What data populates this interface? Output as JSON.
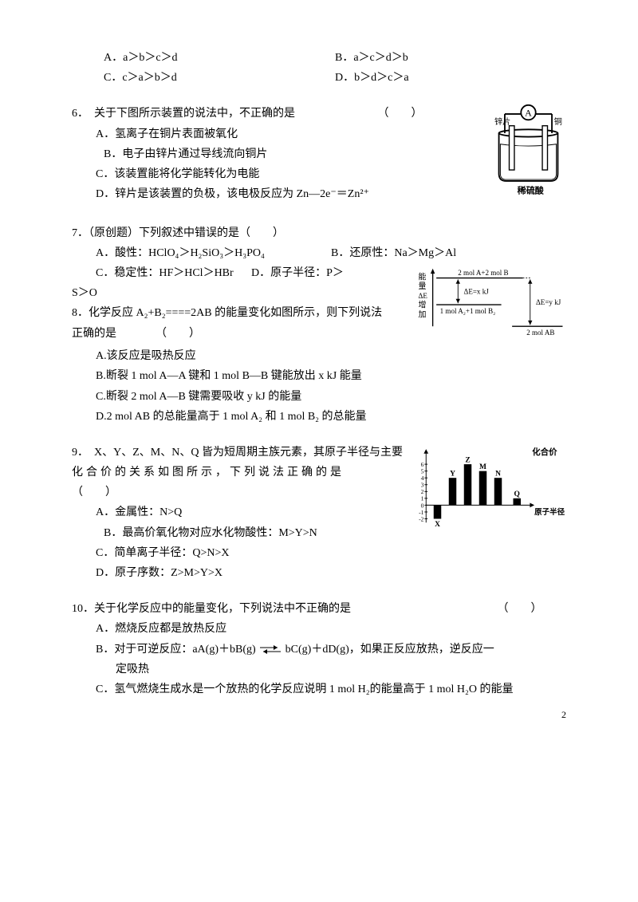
{
  "answers5": {
    "a": "A．a＞b＞c＞d",
    "b": "B．a＞c＞d＞b",
    "c": "C．c＞a＞b＞d",
    "d": "D．b＞d＞c＞a"
  },
  "q6": {
    "stem": "6．　关于下图所示装置的说法中，不正确的是",
    "paren": "（　　）",
    "a": "A．氢离子在铜片表面被氧化",
    "b": "B．电子由锌片通过导线流向铜片",
    "c": "C．该装置能将化学能转化为电能",
    "d": "D．锌片是该装置的负极，该电极反应为 Zn—2e⁻＝Zn²⁺",
    "diagram": {
      "ammeter": "A",
      "left_label": "锌片",
      "right_label": "铜",
      "bottom_label": "稀硫酸",
      "colors": {
        "stroke": "#000000",
        "fill_white": "#ffffff"
      }
    }
  },
  "q7": {
    "stem": "7．（原创题）下列叙述中错误的是（　　）",
    "a": "A．酸性：HClO₄＞H₂SiO₃＞H₃PO₄",
    "b": "B．还原性：Na＞Mg＞Al",
    "c": "C．稳定性：HF＞HCl＞HBr",
    "d": "D．原子半径：P＞",
    "cont": "S＞O"
  },
  "q8": {
    "stem": "8．化学反应 A₂+B₂====2AB 的能量变化如图所示，则下列说法",
    "stem2": "正确的是　　　　（　　）",
    "a": "A.该反应是吸热反应",
    "b": "B.断裂 1 mol A—A 键和 1 mol B—B 键能放出 x kJ 能量",
    "c": "C.断裂 2 mol A—B 键需要吸收 y kJ 的能量",
    "d": "D.2 mol AB 的总能量高于 1 mol A₂ 和 1 mol B₂ 的总能量",
    "diagram": {
      "y_label": "能量ΔE增加",
      "top": "2 mol A+2 mol B",
      "mid": "1 mol A₂+1 mol B₂",
      "bot": "2 mol AB",
      "dx": "ΔE=x kJ",
      "dy": "ΔE=y kJ",
      "colors": {
        "stroke": "#000"
      }
    }
  },
  "q9": {
    "stem1": "9．　X、Y、Z、M、N、Q 皆为短周期主族元素，其原子半径与主要",
    "stem2": "化合价的关系如图所示，下列说法正确的是",
    "paren": "（　　）",
    "a": "A．金属性：N>Q",
    "b": "B．最高价氧化物对应水化物酸性：M>Y>N",
    "c": "C．简单离子半径：Q>N>X",
    "d": "D．原子序数：Z>M>Y>X",
    "diagram": {
      "y_label": "化合价",
      "x_label": "原子半径",
      "labels": [
        "X",
        "Y",
        "Z",
        "M",
        "N",
        "Q"
      ],
      "y_values": [
        -2,
        4,
        6,
        5,
        4,
        1
      ],
      "x_positions": [
        25,
        45,
        65,
        85,
        105,
        130
      ],
      "y_ticks": [
        -2,
        -1,
        0,
        1,
        2,
        3,
        4,
        5,
        6
      ],
      "colors": {
        "bar": "#000000",
        "axis": "#000000"
      }
    }
  },
  "q10": {
    "stem": "10．关于化学反应中的能量变化，下列说法中不正确的是",
    "paren": "（　　）",
    "a": "A．燃烧反应都是放热反应",
    "b1": "B．对于可逆反应：aA(g)＋bB(g)",
    "b2": "bC(g)＋dD(g)，如果正反应放热，逆反应一",
    "b3": "定吸热",
    "c": "C．氢气燃烧生成水是一个放热的化学反应说明 1 mol H₂的能量高于 1 mol H₂O 的能量"
  },
  "page_number": "2"
}
